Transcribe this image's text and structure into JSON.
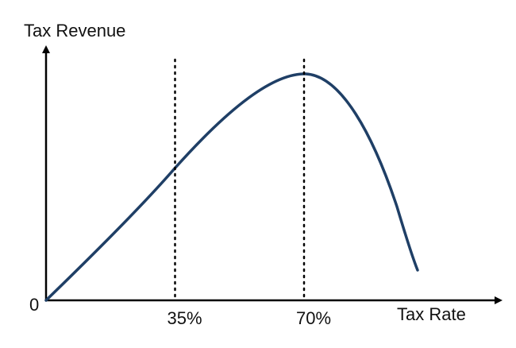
{
  "axes": {
    "y_label": "Tax Revenue",
    "x_label": "Tax Rate",
    "origin": "0"
  },
  "markers": [
    {
      "value": 35,
      "label": "35%"
    },
    {
      "value": 70,
      "label": "70%"
    }
  ]
}
